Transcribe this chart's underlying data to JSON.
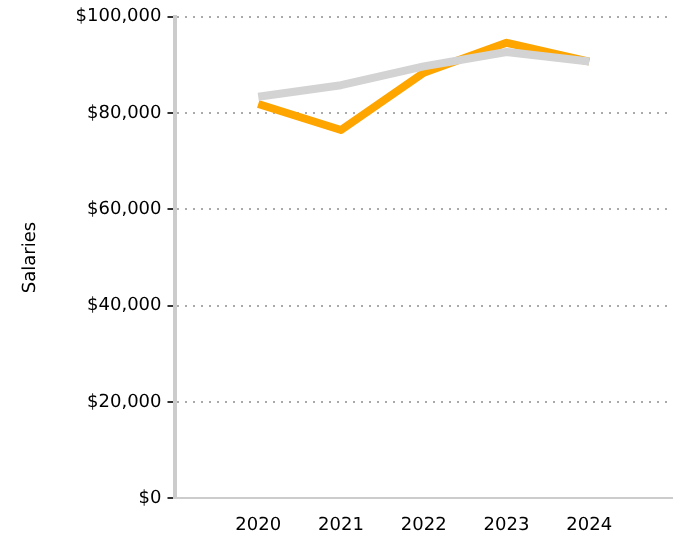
{
  "chart_data": {
    "type": "line",
    "ylabel": "Salaries",
    "categories": [
      null,
      "2020",
      "2021",
      "2022",
      "2023",
      "2024",
      null
    ],
    "series": [
      {
        "color": "#d3d3d3",
        "values": [
          null,
          83400,
          85800,
          89700,
          92700,
          90700,
          null
        ]
      },
      {
        "color": "#ffa500",
        "values": [
          null,
          81900,
          76500,
          88400,
          94600,
          90700,
          null
        ]
      }
    ],
    "ylim": [
      0,
      100000
    ],
    "yticks": [
      {
        "value": 0,
        "label": "$0"
      },
      {
        "value": 20000,
        "label": "$20,000"
      },
      {
        "value": 40000,
        "label": "$40,000"
      },
      {
        "value": 60000,
        "label": "$60,000"
      },
      {
        "value": 80000,
        "label": "$80,000"
      },
      {
        "value": 100000,
        "label": "$100,000"
      }
    ],
    "grid": "y",
    "legend": false,
    "marker": "none",
    "line_style": "solid"
  }
}
